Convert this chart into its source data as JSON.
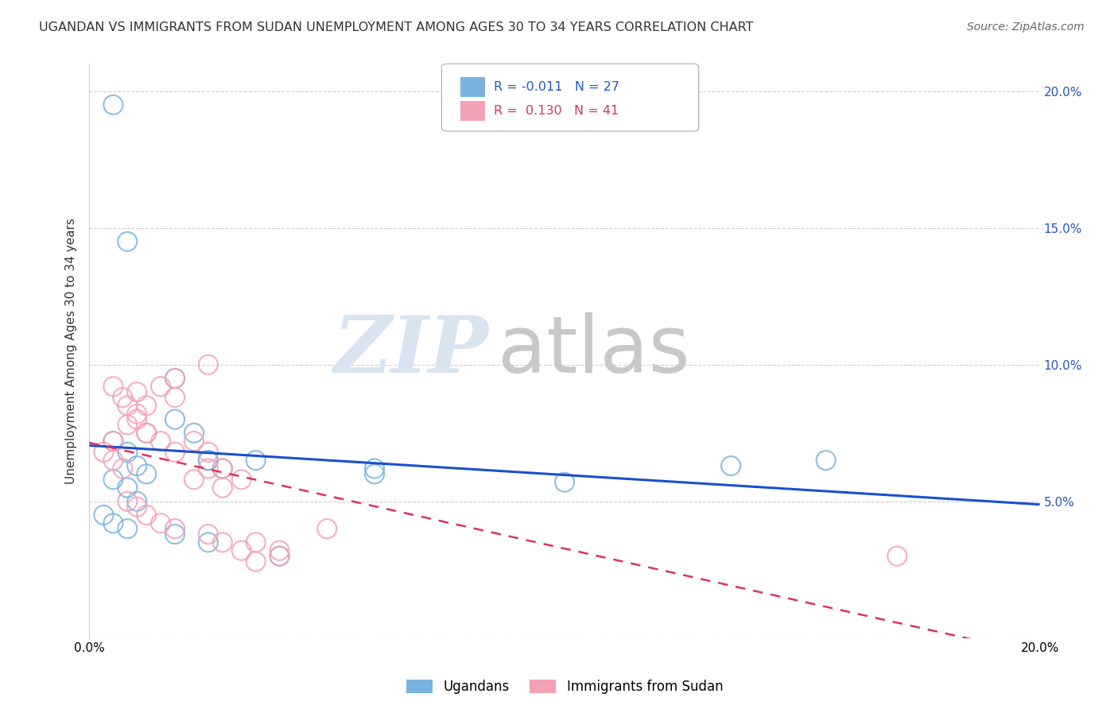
{
  "title": "UGANDAN VS IMMIGRANTS FROM SUDAN UNEMPLOYMENT AMONG AGES 30 TO 34 YEARS CORRELATION CHART",
  "source": "Source: ZipAtlas.com",
  "ylabel": "Unemployment Among Ages 30 to 34 years",
  "xlim": [
    0.0,
    0.2
  ],
  "ylim": [
    0.0,
    0.21
  ],
  "xticks": [
    0.0,
    0.05,
    0.1,
    0.15,
    0.2
  ],
  "yticks": [
    0.0,
    0.05,
    0.1,
    0.15,
    0.2
  ],
  "xticklabels": [
    "0.0%",
    "",
    "",
    "",
    "20.0%"
  ],
  "yticklabels_left": [
    "",
    "",
    "",
    "",
    ""
  ],
  "yticklabels_right": [
    "",
    "5.0%",
    "10.0%",
    "15.0%",
    "20.0%"
  ],
  "background_color": "#ffffff",
  "grid_color": "#c8c8c8",
  "ugandan_color": "#7ab3e0",
  "sudan_color": "#f4a0b5",
  "ugandan_line_color": "#1a4fcc",
  "sudan_line_color": "#e03060",
  "legend_R_ugandan": "-0.011",
  "legend_N_ugandan": "27",
  "legend_R_sudan": "0.130",
  "legend_N_sudan": "41",
  "watermark_zip": "ZIP",
  "watermark_atlas": "atlas",
  "watermark_color": "#d8e4f0",
  "watermark_atlas_color": "#c8c8c8",
  "ugandan_x": [
    0.005,
    0.008,
    0.018,
    0.025,
    0.035,
    0.018,
    0.022,
    0.025,
    0.028,
    0.005,
    0.008,
    0.01,
    0.012,
    0.005,
    0.008,
    0.01,
    0.003,
    0.005,
    0.008,
    0.018,
    0.025,
    0.04,
    0.06,
    0.135,
    0.155,
    0.06,
    0.1
  ],
  "ugandan_y": [
    0.195,
    0.145,
    0.095,
    0.065,
    0.065,
    0.08,
    0.075,
    0.065,
    0.062,
    0.072,
    0.068,
    0.063,
    0.06,
    0.058,
    0.055,
    0.05,
    0.045,
    0.042,
    0.04,
    0.038,
    0.035,
    0.03,
    0.062,
    0.063,
    0.065,
    0.06,
    0.057
  ],
  "sudan_x": [
    0.003,
    0.005,
    0.007,
    0.005,
    0.008,
    0.01,
    0.012,
    0.005,
    0.007,
    0.01,
    0.012,
    0.015,
    0.018,
    0.008,
    0.01,
    0.012,
    0.015,
    0.018,
    0.022,
    0.025,
    0.028,
    0.022,
    0.025,
    0.028,
    0.032,
    0.008,
    0.01,
    0.012,
    0.015,
    0.018,
    0.025,
    0.028,
    0.032,
    0.035,
    0.04,
    0.018,
    0.025,
    0.035,
    0.04,
    0.17,
    0.05
  ],
  "sudan_y": [
    0.068,
    0.065,
    0.062,
    0.072,
    0.085,
    0.08,
    0.075,
    0.092,
    0.088,
    0.09,
    0.085,
    0.092,
    0.088,
    0.078,
    0.082,
    0.075,
    0.072,
    0.068,
    0.072,
    0.068,
    0.062,
    0.058,
    0.062,
    0.055,
    0.058,
    0.05,
    0.048,
    0.045,
    0.042,
    0.04,
    0.038,
    0.035,
    0.032,
    0.028,
    0.03,
    0.095,
    0.1,
    0.035,
    0.032,
    0.03,
    0.04
  ]
}
